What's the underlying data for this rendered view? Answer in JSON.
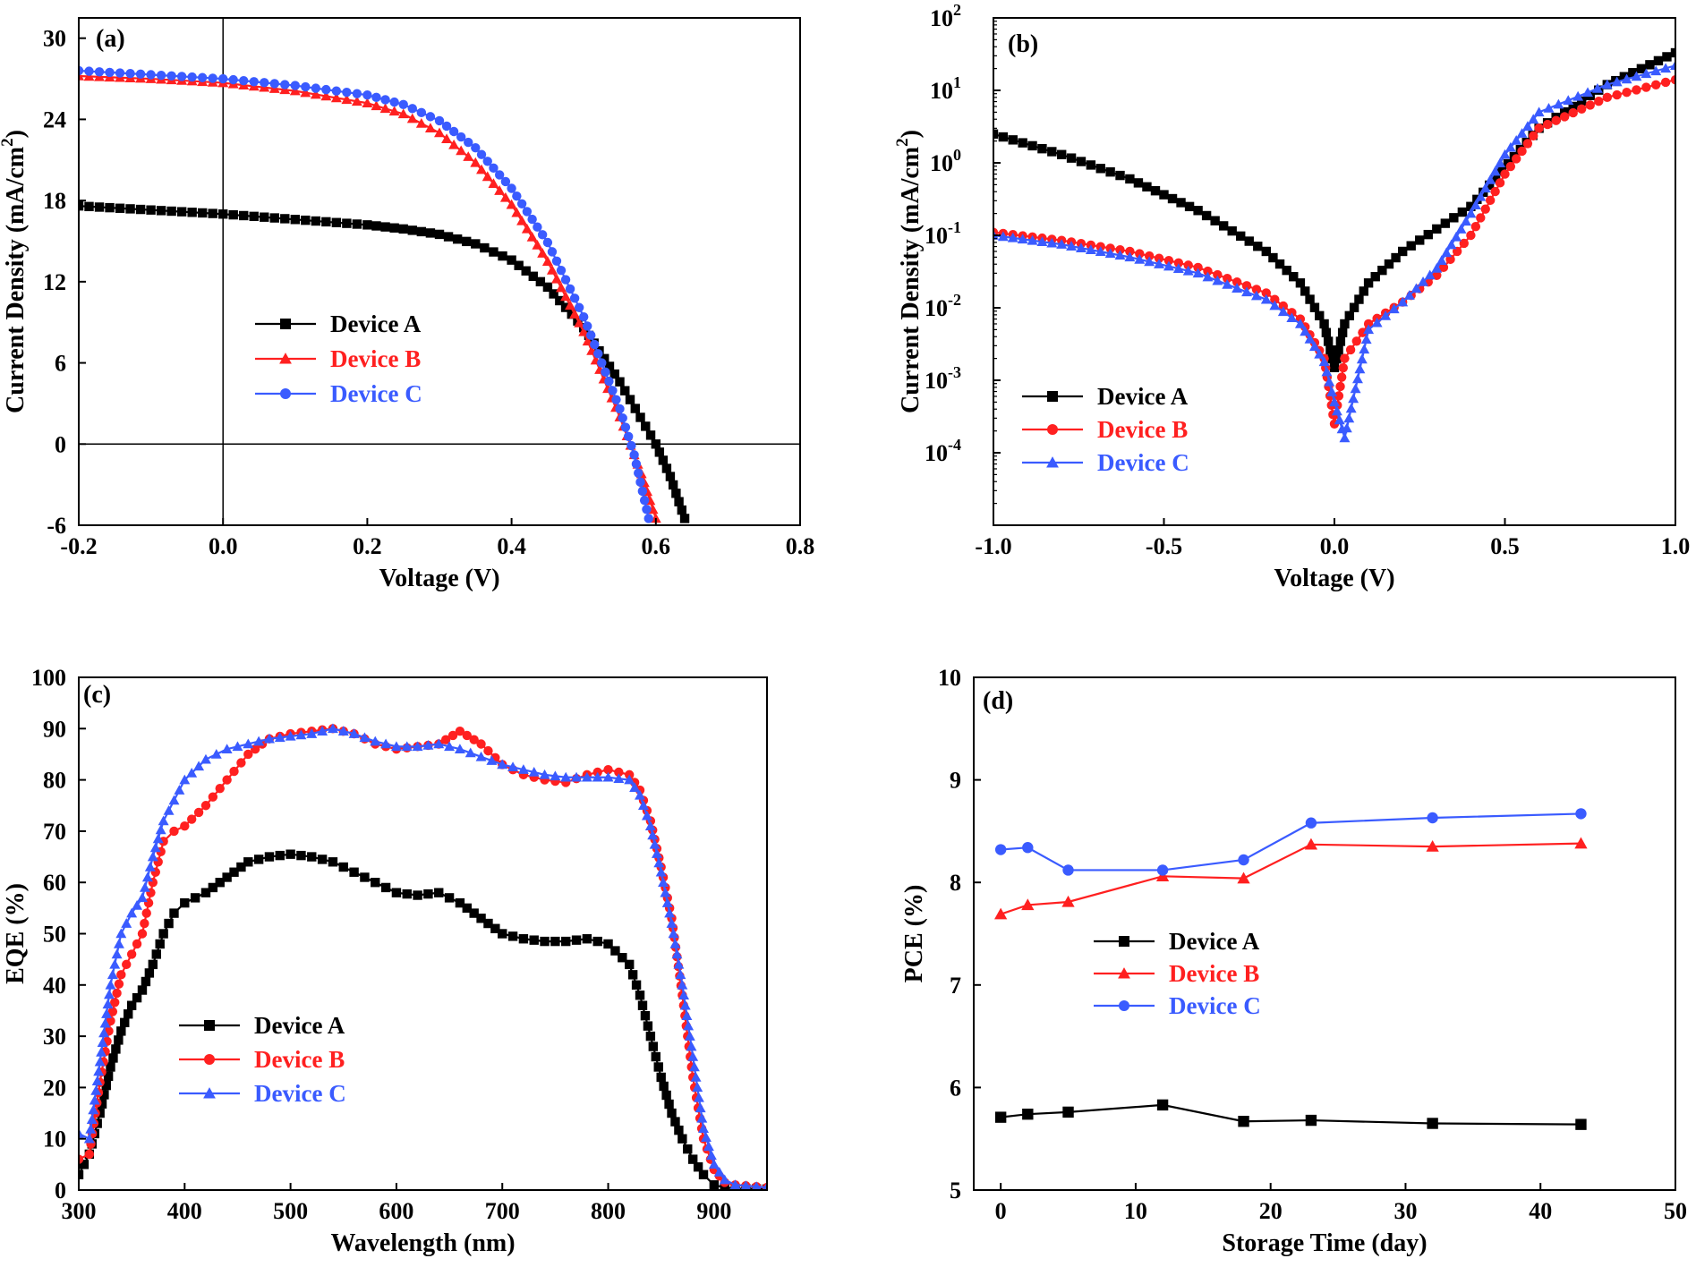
{
  "colors": {
    "device_a": "#000000",
    "device_b": "#ff2020",
    "device_c": "#3a5bff",
    "axis": "#000000"
  },
  "chart_data": [
    {
      "id": "a",
      "type": "line",
      "panel_label": "(a)",
      "xlabel": "Voltage (V)",
      "ylabel": "Current Density (mA/cm",
      "ylabel_sup": "2",
      "ylabel_close": ")",
      "xlim": [
        -0.2,
        0.8
      ],
      "ylim": [
        -6,
        31.5
      ],
      "xticks": [
        -0.2,
        0.0,
        0.2,
        0.4,
        0.6,
        0.8
      ],
      "xtick_labels": [
        "-0.2",
        "0.0",
        "0.2",
        "0.4",
        "0.6",
        "0.8"
      ],
      "yticks": [
        -6,
        0,
        6,
        12,
        18,
        24,
        30
      ],
      "ytick_labels": [
        "-6",
        "0",
        "6",
        "12",
        "18",
        "24",
        "30"
      ],
      "zero_lines": true,
      "legend_position": "center-left",
      "series": [
        {
          "name": "Device A",
          "color": "#000000",
          "marker": "square",
          "x": [
            -0.2,
            -0.1,
            0.0,
            0.1,
            0.2,
            0.25,
            0.3,
            0.35,
            0.4,
            0.45,
            0.5,
            0.55,
            0.6,
            0.62,
            0.64
          ],
          "y": [
            17.6,
            17.3,
            17.0,
            16.6,
            16.2,
            15.9,
            15.5,
            14.8,
            13.6,
            11.6,
            8.6,
            4.6,
            0.0,
            -2.4,
            -5.5
          ]
        },
        {
          "name": "Device B",
          "color": "#ff2020",
          "marker": "triangle",
          "x": [
            -0.2,
            -0.1,
            0.0,
            0.1,
            0.2,
            0.25,
            0.3,
            0.35,
            0.4,
            0.45,
            0.5,
            0.55,
            0.58,
            0.6
          ],
          "y": [
            27.2,
            27.0,
            26.7,
            26.1,
            25.2,
            24.4,
            23.0,
            20.8,
            17.7,
            13.5,
            8.3,
            2.0,
            -2.2,
            -5.5
          ]
        },
        {
          "name": "Device C",
          "color": "#3a5bff",
          "marker": "circle",
          "x": [
            -0.2,
            -0.1,
            0.0,
            0.1,
            0.2,
            0.25,
            0.3,
            0.35,
            0.4,
            0.45,
            0.5,
            0.55,
            0.57,
            0.59
          ],
          "y": [
            27.6,
            27.3,
            27.0,
            26.5,
            25.8,
            25.1,
            23.9,
            21.9,
            18.9,
            14.9,
            9.4,
            2.6,
            -0.8,
            -5.5
          ]
        }
      ]
    },
    {
      "id": "b",
      "type": "line",
      "scale_y": "log",
      "panel_label": "(b)",
      "xlabel": "Voltage (V)",
      "ylabel": "Current Density (mA/cm",
      "ylabel_sup": "2",
      "ylabel_close": ")",
      "xlim": [
        -1.0,
        1.0
      ],
      "ylim_log10": [
        -5,
        2
      ],
      "xticks": [
        -1.0,
        -0.5,
        0.0,
        0.5,
        1.0
      ],
      "xtick_labels": [
        "-1.0",
        "-0.5",
        "0.0",
        "0.5",
        "1.0"
      ],
      "yticks_log10": [
        -4,
        -3,
        -2,
        -1,
        0,
        1,
        2
      ],
      "ytick_base": "10",
      "ytick_exponents": [
        "-4",
        "-3",
        "-2",
        "-1",
        "0",
        "1",
        "2"
      ],
      "legend_position": "bottom-left",
      "series": [
        {
          "name": "Device A",
          "color": "#000000",
          "marker": "square",
          "x": [
            -1.0,
            -0.8,
            -0.6,
            -0.4,
            -0.2,
            -0.1,
            -0.03,
            0.0,
            0.03,
            0.1,
            0.2,
            0.4,
            0.6,
            0.8,
            1.0
          ],
          "y": [
            2.5,
            1.3,
            0.6,
            0.22,
            0.06,
            0.022,
            0.006,
            0.0015,
            0.006,
            0.022,
            0.06,
            0.25,
            3.0,
            12.0,
            33.0
          ]
        },
        {
          "name": "Device B",
          "color": "#ff2020",
          "marker": "circle",
          "x": [
            -1.0,
            -0.8,
            -0.6,
            -0.4,
            -0.2,
            -0.1,
            -0.03,
            0.0,
            0.03,
            0.1,
            0.2,
            0.3,
            0.4,
            0.5,
            0.6,
            0.8,
            1.0
          ],
          "y": [
            0.11,
            0.085,
            0.06,
            0.036,
            0.016,
            0.007,
            0.002,
            0.00025,
            0.002,
            0.006,
            0.012,
            0.028,
            0.1,
            0.7,
            3.0,
            8.0,
            14.0
          ]
        },
        {
          "name": "Device C",
          "color": "#3a5bff",
          "marker": "triangle",
          "x": [
            -1.0,
            -0.8,
            -0.6,
            -0.4,
            -0.2,
            -0.1,
            -0.03,
            0.0,
            0.03,
            0.1,
            0.2,
            0.3,
            0.4,
            0.5,
            0.6,
            0.8,
            1.0
          ],
          "y": [
            0.1,
            0.075,
            0.05,
            0.03,
            0.013,
            0.006,
            0.0018,
            0.0005,
            0.00016,
            0.005,
            0.012,
            0.035,
            0.2,
            1.3,
            5.0,
            12.0,
            22.0
          ]
        }
      ]
    },
    {
      "id": "c",
      "type": "line",
      "panel_label": "(c)",
      "xlabel": "Wavelength (nm)",
      "ylabel": "EQE (%)",
      "xlim": [
        300,
        950
      ],
      "ylim": [
        0,
        100
      ],
      "xticks": [
        300,
        400,
        500,
        600,
        700,
        800,
        900
      ],
      "xtick_labels": [
        "300",
        "400",
        "500",
        "600",
        "700",
        "800",
        "900"
      ],
      "yticks": [
        0,
        10,
        20,
        30,
        40,
        50,
        60,
        70,
        80,
        90,
        100
      ],
      "ytick_labels": [
        "0",
        "10",
        "20",
        "30",
        "40",
        "50",
        "60",
        "70",
        "80",
        "90",
        "100"
      ],
      "legend_position": "bottom-left",
      "series": [
        {
          "name": "Device A",
          "color": "#000000",
          "marker": "square",
          "x": [
            300,
            310,
            320,
            330,
            340,
            350,
            360,
            370,
            380,
            390,
            400,
            420,
            440,
            460,
            480,
            500,
            520,
            540,
            560,
            580,
            600,
            620,
            640,
            660,
            680,
            700,
            720,
            740,
            760,
            780,
            800,
            820,
            830,
            840,
            850,
            860,
            870,
            880,
            890,
            900,
            910,
            920,
            950
          ],
          "y": [
            3,
            7,
            15,
            24,
            31,
            36,
            39,
            44,
            50,
            54,
            56,
            58,
            61,
            64,
            65,
            65.5,
            65,
            64,
            62,
            60,
            58,
            57.5,
            58,
            56,
            53,
            50,
            49,
            48.5,
            48.5,
            49,
            48,
            44,
            38,
            30,
            22,
            15,
            10,
            6,
            3,
            1,
            0.5,
            0.3,
            0.2
          ]
        },
        {
          "name": "Device B",
          "color": "#ff2020",
          "marker": "circle",
          "x": [
            300,
            310,
            320,
            330,
            340,
            350,
            360,
            370,
            380,
            390,
            400,
            420,
            440,
            460,
            480,
            500,
            520,
            540,
            560,
            580,
            600,
            620,
            640,
            660,
            680,
            700,
            720,
            740,
            760,
            780,
            800,
            820,
            830,
            840,
            850,
            860,
            870,
            880,
            890,
            900,
            910,
            920,
            950
          ],
          "y": [
            6,
            7,
            21,
            33,
            42,
            46,
            50,
            60,
            68,
            70,
            71,
            75,
            80,
            85,
            88,
            89,
            89.5,
            90,
            89,
            87,
            86,
            86.5,
            87,
            89.5,
            87,
            83,
            81,
            80,
            79.5,
            81,
            82,
            81,
            78,
            72,
            63,
            53,
            38,
            22,
            10,
            4,
            1.5,
            1,
            0.5
          ]
        },
        {
          "name": "Device C",
          "color": "#3a5bff",
          "marker": "triangle",
          "x": [
            300,
            310,
            320,
            330,
            340,
            350,
            360,
            370,
            380,
            390,
            400,
            420,
            440,
            460,
            480,
            500,
            520,
            540,
            560,
            580,
            600,
            620,
            640,
            660,
            680,
            700,
            720,
            740,
            760,
            780,
            800,
            820,
            830,
            840,
            850,
            860,
            870,
            880,
            890,
            900,
            910,
            920,
            950
          ],
          "y": [
            11,
            10,
            25,
            40,
            50,
            54,
            57,
            65,
            72,
            76,
            80,
            84,
            86,
            87,
            88,
            88.5,
            89,
            90,
            89,
            87.5,
            86.5,
            86.5,
            87,
            86,
            84.5,
            83,
            82,
            81,
            80.5,
            80.5,
            80.5,
            80,
            77,
            71,
            62,
            52,
            40,
            26,
            12,
            5,
            2,
            1,
            0.5
          ]
        }
      ]
    },
    {
      "id": "d",
      "type": "line",
      "panel_label": "(d)",
      "xlabel": "Storage Time (day)",
      "ylabel": "PCE (%)",
      "xlim": [
        -2,
        50
      ],
      "ylim": [
        5,
        10
      ],
      "xticks": [
        0,
        10,
        20,
        30,
        40,
        50
      ],
      "xtick_labels": [
        "0",
        "10",
        "20",
        "30",
        "40",
        "50"
      ],
      "yticks": [
        5,
        6,
        7,
        8,
        9,
        10
      ],
      "ytick_labels": [
        "5",
        "6",
        "7",
        "8",
        "9",
        "10"
      ],
      "legend_position": "center-left",
      "series": [
        {
          "name": "Device A",
          "color": "#000000",
          "marker": "square",
          "x": [
            0,
            2,
            5,
            12,
            18,
            23,
            32,
            43
          ],
          "y": [
            5.71,
            5.74,
            5.76,
            5.83,
            5.67,
            5.68,
            5.65,
            5.64
          ]
        },
        {
          "name": "Device B",
          "color": "#ff2020",
          "marker": "triangle",
          "x": [
            0,
            2,
            5,
            12,
            18,
            23,
            32,
            43
          ],
          "y": [
            7.69,
            7.78,
            7.81,
            8.06,
            8.04,
            8.37,
            8.35,
            8.38
          ]
        },
        {
          "name": "Device C",
          "color": "#3a5bff",
          "marker": "circle",
          "x": [
            0,
            2,
            5,
            12,
            18,
            23,
            32,
            43
          ],
          "y": [
            8.32,
            8.34,
            8.12,
            8.12,
            8.22,
            8.58,
            8.63,
            8.67
          ]
        }
      ]
    }
  ]
}
